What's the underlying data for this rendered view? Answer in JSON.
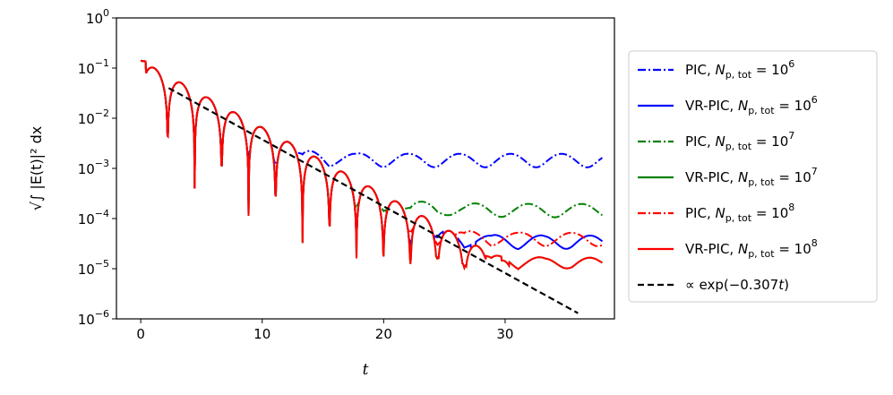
{
  "chart_data": {
    "type": "line",
    "xlabel": "t",
    "ylabel": "√∫ |E(t)|² dx",
    "xlim": [
      -2,
      39
    ],
    "ylim": [
      1e-06,
      1
    ],
    "yscale": "log",
    "x_ticks": [
      0,
      10,
      20,
      30
    ],
    "x_tick_labels": [
      "0",
      "10",
      "20",
      "30"
    ],
    "y_ticks": [
      1e-06,
      1e-05,
      0.0001,
      0.001,
      0.01,
      0.1,
      1
    ],
    "y_tick_labels": [
      {
        "base": "10",
        "exp": "−6"
      },
      {
        "base": "10",
        "exp": "−5"
      },
      {
        "base": "10",
        "exp": "−4"
      },
      {
        "base": "10",
        "exp": "−3"
      },
      {
        "base": "10",
        "exp": "−2"
      },
      {
        "base": "10",
        "exp": "−1"
      },
      {
        "base": "10",
        "exp": "0"
      }
    ],
    "grid": false,
    "legend_position": "outside-right",
    "series": [
      {
        "name": "PIC, N_p,tot = 10^6",
        "legend": {
          "prefix": "PIC, ",
          "var": "N",
          "sub": "p, tot",
          "eq": " = 10",
          "exp": "6"
        },
        "color": "#0000ff",
        "style": "dashdot",
        "params": {
          "a0": 0.14,
          "gamma": 0.307,
          "omega": 1.415,
          "phase": 1.5708,
          "floor": 0.0015,
          "floor_osc": 0.3,
          "floor_period": 4.2
        }
      },
      {
        "name": "VR-PIC, N_p,tot = 10^6",
        "legend": {
          "prefix": "VR-PIC, ",
          "var": "N",
          "sub": "p, tot",
          "eq": " = 10",
          "exp": "6"
        },
        "color": "#0000ff",
        "style": "solid",
        "params": {
          "a0": 0.14,
          "gamma": 0.307,
          "omega": 1.415,
          "phase": 1.5708,
          "floor": 3.5e-05,
          "floor_osc": 0.3,
          "floor_period": 4.0
        }
      },
      {
        "name": "PIC, N_p,tot = 10^7",
        "legend": {
          "prefix": "PIC, ",
          "var": "N",
          "sub": "p, tot",
          "eq": " = 10",
          "exp": "7"
        },
        "color": "#008000",
        "style": "dashdot",
        "params": {
          "a0": 0.14,
          "gamma": 0.307,
          "omega": 1.415,
          "phase": 1.5708,
          "floor": 0.00015,
          "floor_osc": 0.3,
          "floor_period": 4.4
        }
      },
      {
        "name": "VR-PIC, N_p,tot = 10^7",
        "legend": {
          "prefix": "VR-PIC, ",
          "var": "N",
          "sub": "p, tot",
          "eq": " = 10",
          "exp": "7"
        },
        "color": "#008000",
        "style": "solid",
        "params": {
          "a0": 0.14,
          "gamma": 0.307,
          "omega": 1.415,
          "phase": 1.5708,
          "floor": 1.3e-05,
          "floor_osc": 0.25,
          "floor_period": 4.0
        }
      },
      {
        "name": "PIC, N_p,tot = 10^8",
        "legend": {
          "prefix": "PIC, ",
          "var": "N",
          "sub": "p, tot",
          "eq": " = 10",
          "exp": "8"
        },
        "color": "#ff0000",
        "style": "dashdot",
        "params": {
          "a0": 0.14,
          "gamma": 0.307,
          "omega": 1.415,
          "phase": 1.5708,
          "floor": 4e-05,
          "floor_osc": 0.3,
          "floor_period": 4.3
        }
      },
      {
        "name": "VR-PIC, N_p,tot = 10^8",
        "legend": {
          "prefix": "VR-PIC, ",
          "var": "N",
          "sub": "p, tot",
          "eq": " = 10",
          "exp": "8"
        },
        "color": "#ff0000",
        "style": "solid",
        "params": {
          "a0": 0.14,
          "gamma": 0.307,
          "omega": 1.415,
          "phase": 1.5708,
          "floor": 1.3e-05,
          "floor_osc": 0.25,
          "floor_period": 4.0
        }
      }
    ],
    "fit_line": {
      "name": "∝ exp(−0.307t)",
      "legend": {
        "text": "∝ exp(−0.307",
        "var": "t",
        "close": ")"
      },
      "color": "#000000",
      "style": "dashed",
      "x": [
        2.3,
        36
      ],
      "y": [
        0.04,
        1.3e-06
      ]
    }
  }
}
